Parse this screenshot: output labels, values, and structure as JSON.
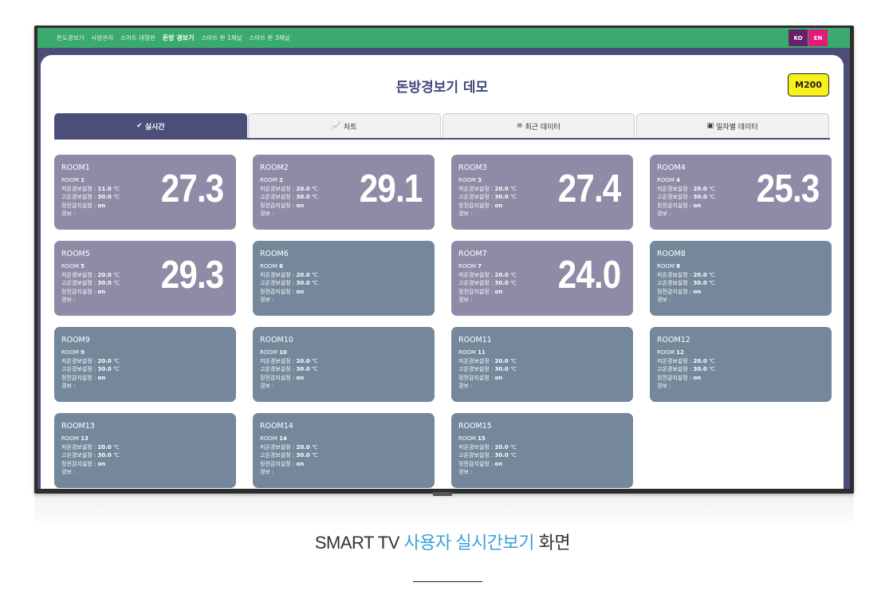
{
  "nav": {
    "items": [
      "온도경보기",
      "사양관리",
      "스마트 대형판",
      "돈방 경보기",
      "스마트 판 1채널",
      "스마트 판 3채널"
    ],
    "active_index": 3
  },
  "lang": {
    "ko": "KO",
    "en": "EN"
  },
  "page": {
    "title": "돈방경보기 데모",
    "model": "M200"
  },
  "tabs": [
    {
      "icon": "✔",
      "label": "실시간",
      "active": true
    },
    {
      "icon": "📈",
      "label": "차트",
      "active": false
    },
    {
      "icon": "≡",
      "label": "최근 데이터",
      "active": false
    },
    {
      "icon": "▣",
      "label": "일자별 데이터",
      "active": false
    }
  ],
  "labels": {
    "room_prefix": "ROOM",
    "low_alarm": "저온경보설정 : ",
    "high_alarm": "고온경보설정 : ",
    "power_detect": "정전감지설정 : ",
    "alarm": "경보 : ",
    "unit": " ℃"
  },
  "rooms": [
    {
      "name": "ROOM1",
      "num": "1",
      "low": "11.0",
      "high": "30.0",
      "power": "on",
      "temp": "27.3",
      "state": "warm"
    },
    {
      "name": "ROOM2",
      "num": "2",
      "low": "20.0",
      "high": "30.0",
      "power": "on",
      "temp": "29.1",
      "state": "warm"
    },
    {
      "name": "ROOM3",
      "num": "3",
      "low": "20.0",
      "high": "30.0",
      "power": "on",
      "temp": "27.4",
      "state": "warm"
    },
    {
      "name": "ROOM4",
      "num": "4",
      "low": "20.0",
      "high": "30.0",
      "power": "on",
      "temp": "25.3",
      "state": "warm"
    },
    {
      "name": "ROOM5",
      "num": "5",
      "low": "20.0",
      "high": "30.0",
      "power": "on",
      "temp": "29.3",
      "state": "warm"
    },
    {
      "name": "ROOM6",
      "num": "6",
      "low": "20.0",
      "high": "30.0",
      "power": "on",
      "temp": "",
      "state": "cool"
    },
    {
      "name": "ROOM7",
      "num": "7",
      "low": "20.0",
      "high": "30.0",
      "power": "on",
      "temp": "24.0",
      "state": "warm"
    },
    {
      "name": "ROOM8",
      "num": "8",
      "low": "20.0",
      "high": "30.0",
      "power": "on",
      "temp": "",
      "state": "cool"
    },
    {
      "name": "ROOM9",
      "num": "9",
      "low": "20.0",
      "high": "30.0",
      "power": "on",
      "temp": "",
      "state": "cool"
    },
    {
      "name": "ROOM10",
      "num": "10",
      "low": "20.0",
      "high": "30.0",
      "power": "on",
      "temp": "",
      "state": "cool"
    },
    {
      "name": "ROOM11",
      "num": "11",
      "low": "20.0",
      "high": "30.0",
      "power": "on",
      "temp": "",
      "state": "cool"
    },
    {
      "name": "ROOM12",
      "num": "12",
      "low": "20.0",
      "high": "30.0",
      "power": "on",
      "temp": "",
      "state": "cool"
    },
    {
      "name": "ROOM13",
      "num": "13",
      "low": "20.0",
      "high": "30.0",
      "power": "on",
      "temp": "",
      "state": "cool"
    },
    {
      "name": "ROOM14",
      "num": "14",
      "low": "20.0",
      "high": "30.0",
      "power": "on",
      "temp": "",
      "state": "cool"
    },
    {
      "name": "ROOM15",
      "num": "15",
      "low": "20.0",
      "high": "30.0",
      "power": "on",
      "temp": "",
      "state": "cool"
    }
  ],
  "caption": {
    "prefix": "SMART TV ",
    "highlight": "사용자 실시간보기",
    "suffix": " 화면"
  },
  "colors": {
    "topbar": "#3aaa6e",
    "header": "#4a4e78",
    "card_warm": "#8d8ba6",
    "card_cool": "#75879a",
    "model_badge": "#f7f01c",
    "caption_highlight": "#3aa0d6"
  }
}
